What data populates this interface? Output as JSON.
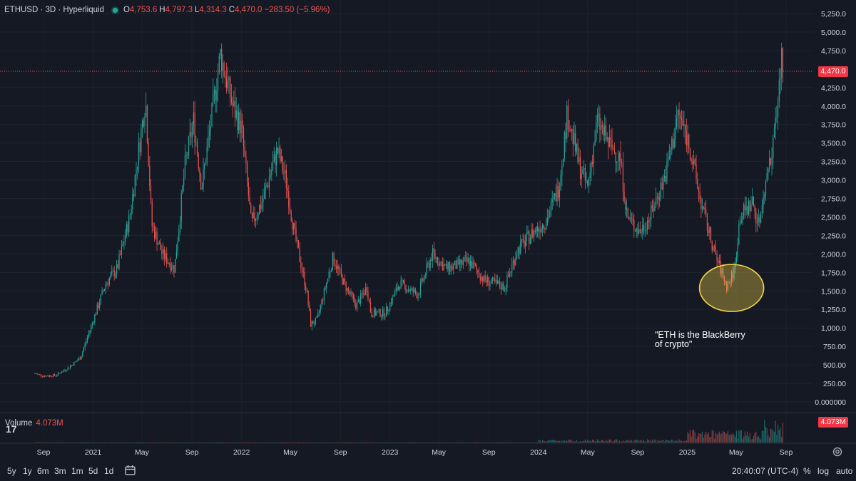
{
  "legend": {
    "symbol": "ETHUSD · 3D · Hyperliquid",
    "o_label": "O",
    "o_value": "4,753.6",
    "h_label": "H",
    "h_value": "4,797.3",
    "l_label": "L",
    "l_value": "4,314.3",
    "c_label": "C",
    "c_value": "4,470.0",
    "change": "−283.50 (−5.96%)"
  },
  "price_axis": {
    "labels": [
      "5,250.0",
      "5,000.0",
      "4,750.0",
      "4,250.0",
      "4,000.0",
      "3,750.0",
      "3,500.0",
      "3,250.0",
      "3,000.0",
      "2,750.0",
      "2,500.0",
      "2,250.0",
      "2,000.0",
      "1,750.0",
      "1,500.0",
      "1,250.0",
      "1,000.0",
      "750.00",
      "500.00",
      "250.00",
      "0.000000"
    ],
    "current_price_label": "4,470.0"
  },
  "time_axis": {
    "labels": [
      "Sep",
      "2021",
      "May",
      "Sep",
      "2022",
      "May",
      "Sep",
      "2023",
      "May",
      "Sep",
      "2024",
      "May",
      "Sep",
      "2025",
      "May",
      "Sep"
    ]
  },
  "volume": {
    "label": "Volume",
    "value": "4.073M",
    "tag": "4.073M"
  },
  "annotation": {
    "line1": "\"ETH is the BlackBerry",
    "line2": "of crypto\""
  },
  "bottom_bar": {
    "timeframes": [
      "5y",
      "1y",
      "6m",
      "3m",
      "1m",
      "5d",
      "1d"
    ],
    "clock": "20:40:07 (UTC-4)",
    "percent": "%",
    "log": "log",
    "auto": "auto"
  },
  "colors": {
    "up": "#26a69a",
    "down": "#ef5350",
    "background": "#151924",
    "highlight": "#f5d547"
  },
  "chart_data": {
    "type": "candlestick",
    "title": "ETHUSD · 3D · Hyperliquid",
    "ylim": [
      0,
      5350
    ],
    "y_ticks": [
      0,
      250,
      500,
      750,
      1000,
      1250,
      1500,
      1750,
      2000,
      2250,
      2500,
      2750,
      3000,
      3250,
      3500,
      3750,
      4000,
      4250,
      4750,
      5000,
      5250
    ],
    "last_price": 4470.0,
    "x_ticks": [
      {
        "date": "2020-09-01",
        "label": "Sep"
      },
      {
        "date": "2021-01-01",
        "label": "2021"
      },
      {
        "date": "2021-05-01",
        "label": "May"
      },
      {
        "date": "2021-09-01",
        "label": "Sep"
      },
      {
        "date": "2022-01-01",
        "label": "2022"
      },
      {
        "date": "2022-05-01",
        "label": "May"
      },
      {
        "date": "2022-09-01",
        "label": "Sep"
      },
      {
        "date": "2023-01-01",
        "label": "2023"
      },
      {
        "date": "2023-05-01",
        "label": "May"
      },
      {
        "date": "2023-09-01",
        "label": "Sep"
      },
      {
        "date": "2024-01-01",
        "label": "2024"
      },
      {
        "date": "2024-05-01",
        "label": "May"
      },
      {
        "date": "2024-09-01",
        "label": "Sep"
      },
      {
        "date": "2025-01-01",
        "label": "2025"
      },
      {
        "date": "2025-05-01",
        "label": "May"
      },
      {
        "date": "2025-09-01",
        "label": "Sep"
      }
    ],
    "price_path": [
      [
        "2020-08-01",
        400
      ],
      [
        "2020-09-01",
        350
      ],
      [
        "2020-10-01",
        360
      ],
      [
        "2020-11-01",
        460
      ],
      [
        "2020-12-01",
        600
      ],
      [
        "2021-01-01",
        1100
      ],
      [
        "2021-02-01",
        1600
      ],
      [
        "2021-03-01",
        1800
      ],
      [
        "2021-04-01",
        2500
      ],
      [
        "2021-05-10",
        4100
      ],
      [
        "2021-05-25",
        2400
      ],
      [
        "2021-06-20",
        2000
      ],
      [
        "2021-07-20",
        1800
      ],
      [
        "2021-08-15",
        3200
      ],
      [
        "2021-09-05",
        3800
      ],
      [
        "2021-09-25",
        2900
      ],
      [
        "2021-11-10",
        4700
      ],
      [
        "2021-12-10",
        4000
      ],
      [
        "2022-01-01",
        3700
      ],
      [
        "2022-01-25",
        2400
      ],
      [
        "2022-02-20",
        2700
      ],
      [
        "2022-03-30",
        3400
      ],
      [
        "2022-04-20",
        3000
      ],
      [
        "2022-05-10",
        2300
      ],
      [
        "2022-06-10",
        1500
      ],
      [
        "2022-06-20",
        1050
      ],
      [
        "2022-07-05",
        1100
      ],
      [
        "2022-08-14",
        1950
      ],
      [
        "2022-09-10",
        1600
      ],
      [
        "2022-10-10",
        1300
      ],
      [
        "2022-11-05",
        1550
      ],
      [
        "2022-11-15",
        1200
      ],
      [
        "2022-12-20",
        1200
      ],
      [
        "2023-01-25",
        1600
      ],
      [
        "2023-03-10",
        1450
      ],
      [
        "2023-04-15",
        2000
      ],
      [
        "2023-05-20",
        1800
      ],
      [
        "2023-07-15",
        1900
      ],
      [
        "2023-08-20",
        1650
      ],
      [
        "2023-10-10",
        1550
      ],
      [
        "2023-11-10",
        2050
      ],
      [
        "2023-12-20",
        2300
      ],
      [
        "2024-01-20",
        2450
      ],
      [
        "2024-02-20",
        2900
      ],
      [
        "2024-03-12",
        3900
      ],
      [
        "2024-04-10",
        3200
      ],
      [
        "2024-05-01",
        2900
      ],
      [
        "2024-05-25",
        3800
      ],
      [
        "2024-06-20",
        3500
      ],
      [
        "2024-07-20",
        3300
      ],
      [
        "2024-08-06",
        2500
      ],
      [
        "2024-09-06",
        2300
      ],
      [
        "2024-10-01",
        2500
      ],
      [
        "2024-11-10",
        3100
      ],
      [
        "2024-12-10",
        3900
      ],
      [
        "2025-01-05",
        3500
      ],
      [
        "2025-02-03",
        2700
      ],
      [
        "2025-03-10",
        2000
      ],
      [
        "2025-04-09",
        1550
      ],
      [
        "2025-04-28",
        1800
      ],
      [
        "2025-05-10",
        2500
      ],
      [
        "2025-06-10",
        2700
      ],
      [
        "2025-06-25",
        2400
      ],
      [
        "2025-07-15",
        3000
      ],
      [
        "2025-08-10",
        3900
      ],
      [
        "2025-08-23",
        4750
      ],
      [
        "2025-08-26",
        4470
      ]
    ],
    "volume_latest": "4.073M"
  }
}
